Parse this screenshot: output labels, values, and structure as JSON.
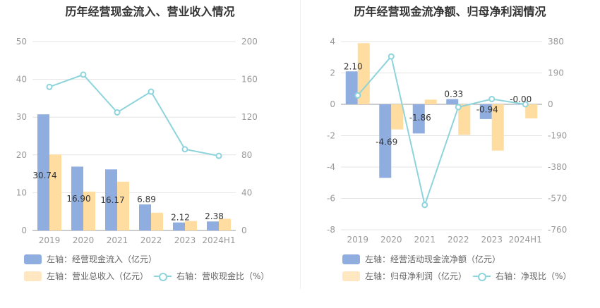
{
  "colors": {
    "bar1": "#8fadde",
    "bar2": "#ffdca0",
    "line": "#8ed4dc",
    "grid": "#e4e4e4",
    "axis": "#999999",
    "label": "#333333"
  },
  "left": {
    "title": "历年经营现金流入、营业收入情况",
    "legend": {
      "bar1": "左轴：经营现金流入（亿元）",
      "bar2": "左轴：营业总收入（亿元）",
      "line": "右轴：营收现金比（%）"
    }
  },
  "right": {
    "title": "历年经营现金流净额、归母净利润情况",
    "legend": {
      "bar1": "左轴：经营活动现金流净额（亿元）",
      "bar2": "左轴：归母净利润（亿元）",
      "line": "右轴：净现比（%）"
    }
  },
  "chart_data": [
    {
      "type": "bar",
      "categories": [
        "2019",
        "2020",
        "2021",
        "2022",
        "2023",
        "2024H1"
      ],
      "series": [
        {
          "name": "左轴：经营现金流入（亿元）",
          "axis": "left",
          "values": [
            30.74,
            16.9,
            16.17,
            6.89,
            2.12,
            2.38
          ],
          "labels": [
            "30.74",
            "16.90",
            "16.17",
            "6.89",
            "2.12",
            "2.38"
          ]
        },
        {
          "name": "左轴：营业总收入（亿元）",
          "axis": "left",
          "values": [
            20.1,
            10.3,
            12.9,
            4.7,
            2.5,
            3.1
          ]
        },
        {
          "name": "右轴：营收现金比（%）",
          "axis": "right",
          "type": "line",
          "values": [
            152,
            165,
            125,
            147,
            86,
            79
          ]
        }
      ],
      "ylim_left": [
        0,
        50
      ],
      "yticks_left": [
        "0",
        "10",
        "20",
        "30",
        "40",
        "50"
      ],
      "ylim_right": [
        0,
        200
      ],
      "yticks_right": [
        "0",
        "40",
        "80",
        "120",
        "160",
        "200"
      ],
      "grid": true,
      "legend_position": "bottom"
    },
    {
      "type": "bar",
      "categories": [
        "2019",
        "2020",
        "2021",
        "2022",
        "2023",
        "2024H1"
      ],
      "series": [
        {
          "name": "左轴：经营活动现金流净额（亿元）",
          "axis": "left",
          "values": [
            2.1,
            -4.69,
            -1.86,
            0.33,
            -0.94,
            -0.0
          ],
          "labels": [
            "2.10",
            "-4.69",
            "-1.86",
            "0.33",
            "-0.94",
            "-0.00"
          ]
        },
        {
          "name": "左轴：归母净利润（亿元）",
          "axis": "left",
          "values": [
            3.9,
            -1.6,
            0.3,
            -1.95,
            -2.95,
            -0.9
          ]
        },
        {
          "name": "右轴：净现比（%）",
          "axis": "right",
          "type": "line",
          "values": [
            54,
            290,
            -610,
            -17,
            32,
            0
          ]
        }
      ],
      "ylim_left": [
        -8,
        4
      ],
      "yticks_left": [
        "-8",
        "-6",
        "-4",
        "-2",
        "0",
        "2",
        "4"
      ],
      "ylim_right": [
        -760,
        380
      ],
      "yticks_right": [
        "-760",
        "-570",
        "-380",
        "-190",
        "0",
        "190",
        "380"
      ],
      "grid": true,
      "legend_position": "bottom"
    }
  ]
}
